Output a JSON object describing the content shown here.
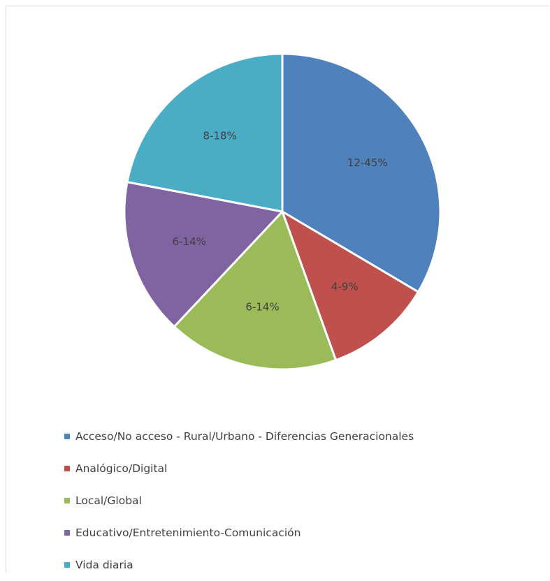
{
  "chart_data": {
    "type": "pie",
    "slices": [
      {
        "label": "Acceso/No acceso - Rural/Urbano - Diferencias Generacionales",
        "data_label": "12-45%",
        "value": 33.5,
        "color": "#4f81bd"
      },
      {
        "label": "Analógico/Digital",
        "data_label": "4-9%",
        "value": 11.0,
        "color": "#c0504d"
      },
      {
        "label": "Local/Global",
        "data_label": "6-14%",
        "value": 17.5,
        "color": "#9bbb59"
      },
      {
        "label": "Educativo/Entretenimiento-Comunicación",
        "data_label": "6-14%",
        "value": 16.0,
        "color": "#8064a2"
      },
      {
        "label": "Vida diaria",
        "data_label": "8-18%",
        "value": 22.0,
        "color": "#4bacc6"
      }
    ],
    "start_angle_deg": 0,
    "direction": "clockwise",
    "legend_position": "bottom"
  }
}
